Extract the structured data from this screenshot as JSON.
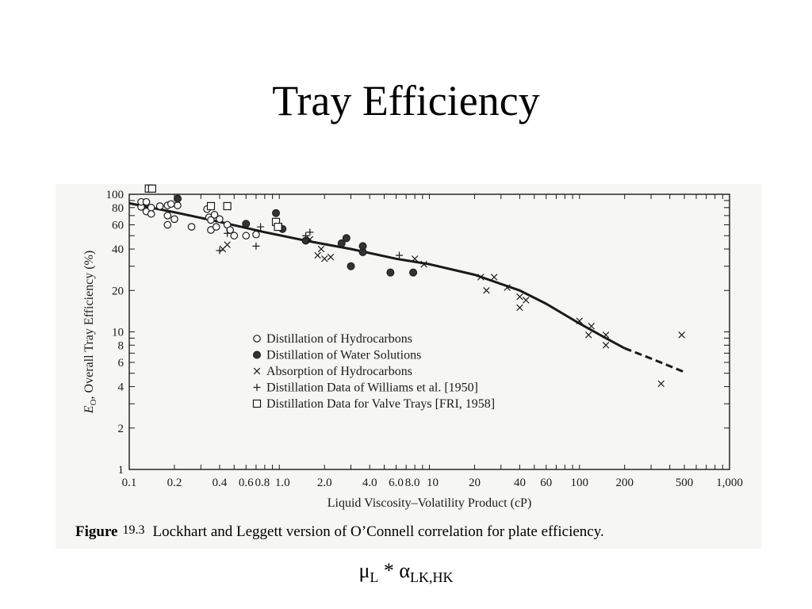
{
  "slide": {
    "title": "Tray Efficiency",
    "subtitle": {
      "mu": "μ",
      "mu_sub": "L",
      "op": " * ",
      "alpha": "α",
      "alpha_sub": "LK,HK"
    }
  },
  "caption": {
    "label": "Figure",
    "number": "19.3",
    "text": "Lockhart and Leggett version of O’Connell correlation for plate efficiency."
  },
  "colors": {
    "background": "#ffffff",
    "figure_background": "#f6f6f4",
    "ink": "#1a1a1a"
  },
  "chart_data": {
    "type": "scatter",
    "xscale": "log",
    "yscale": "log",
    "xlim": [
      0.1,
      1000
    ],
    "ylim": [
      1,
      100
    ],
    "xlabel": "Liquid Viscosity–Volatility Product (cP)",
    "ylabel": "E_O, Overall Tray Efficiency (%)",
    "ylabel_parts": {
      "symbol": "E",
      "sub": "O",
      "rest": ", Overall Tray Efficiency (%)"
    },
    "xticks": [
      0.1,
      0.2,
      0.4,
      0.6,
      0.8,
      1.0,
      2.0,
      4.0,
      6.0,
      8.0,
      10,
      20,
      40,
      60,
      100,
      200,
      500,
      1000
    ],
    "xtick_labels": [
      "0.1",
      "0.2",
      "0.4",
      "0.6",
      "0.8",
      "1.0",
      "2.0",
      "4.0",
      "6.0",
      "8.0",
      "10",
      "20",
      "40",
      "60",
      "100",
      "200",
      "500",
      "1,000"
    ],
    "yticks": [
      1,
      2,
      4,
      6,
      8,
      10,
      20,
      40,
      60,
      80,
      100
    ],
    "ytick_labels": [
      "1",
      "2",
      "4",
      "6",
      "8",
      "10",
      "20",
      "40",
      "60",
      "80",
      "100"
    ],
    "legend_position": "center",
    "series": [
      {
        "name": "Distillation of Hydrocarbons",
        "marker": "open-circle",
        "points": [
          [
            0.12,
            81
          ],
          [
            0.12,
            88
          ],
          [
            0.13,
            75
          ],
          [
            0.13,
            88
          ],
          [
            0.14,
            80
          ],
          [
            0.14,
            72
          ],
          [
            0.16,
            82
          ],
          [
            0.18,
            83
          ],
          [
            0.18,
            70
          ],
          [
            0.18,
            60
          ],
          [
            0.19,
            85
          ],
          [
            0.2,
            66
          ],
          [
            0.21,
            83
          ],
          [
            0.26,
            58
          ],
          [
            0.33,
            78
          ],
          [
            0.34,
            68
          ],
          [
            0.35,
            65
          ],
          [
            0.35,
            55
          ],
          [
            0.37,
            71
          ],
          [
            0.38,
            58
          ],
          [
            0.4,
            66
          ],
          [
            0.45,
            60
          ],
          [
            0.47,
            55
          ],
          [
            0.5,
            50
          ],
          [
            0.6,
            50
          ],
          [
            0.7,
            51
          ]
        ]
      },
      {
        "name": "Distillation of Water Solutions",
        "marker": "filled-circle",
        "points": [
          [
            0.21,
            93
          ],
          [
            0.6,
            61
          ],
          [
            0.95,
            73
          ],
          [
            1.05,
            56
          ],
          [
            1.5,
            46
          ],
          [
            2.6,
            44
          ],
          [
            2.8,
            48
          ],
          [
            3.0,
            30
          ],
          [
            3.6,
            38
          ],
          [
            3.6,
            42
          ],
          [
            5.5,
            27
          ],
          [
            7.8,
            27
          ]
        ]
      },
      {
        "name": "Absorption of Hydrocarbons",
        "marker": "x",
        "points": [
          [
            0.45,
            43
          ],
          [
            0.42,
            40
          ],
          [
            1.0,
            58
          ],
          [
            1.6,
            47
          ],
          [
            1.8,
            36
          ],
          [
            1.9,
            40
          ],
          [
            2.0,
            34
          ],
          [
            2.2,
            35
          ],
          [
            8.0,
            34
          ],
          [
            9.2,
            31
          ],
          [
            22,
            25
          ],
          [
            24,
            20
          ],
          [
            27,
            25
          ],
          [
            33,
            21
          ],
          [
            40,
            18
          ],
          [
            40,
            15
          ],
          [
            44,
            17
          ],
          [
            100,
            12
          ],
          [
            115,
            9.5
          ],
          [
            120,
            11
          ],
          [
            150,
            9.5
          ],
          [
            150,
            8
          ],
          [
            350,
            4.2
          ],
          [
            480,
            9.5
          ]
        ]
      },
      {
        "name": "Distillation Data of Williams et al. [1950]",
        "marker": "plus",
        "points": [
          [
            0.4,
            39
          ],
          [
            0.45,
            52
          ],
          [
            0.7,
            42
          ],
          [
            0.75,
            58
          ],
          [
            1.5,
            50
          ],
          [
            1.6,
            53
          ],
          [
            6.3,
            36
          ]
        ]
      },
      {
        "name": "Distillation Data for Valve Trays [FRI, 1958]",
        "marker": "open-square",
        "points": [
          [
            0.135,
            110
          ],
          [
            0.142,
            110
          ],
          [
            0.35,
            82
          ],
          [
            0.45,
            82
          ],
          [
            0.95,
            63
          ],
          [
            0.98,
            58
          ]
        ]
      }
    ],
    "correlation_curve": {
      "solid": [
        [
          0.1,
          86
        ],
        [
          0.2,
          74
        ],
        [
          0.4,
          63
        ],
        [
          0.8,
          53
        ],
        [
          1.5,
          46
        ],
        [
          3,
          40
        ],
        [
          6,
          34
        ],
        [
          10,
          31
        ],
        [
          20,
          26
        ],
        [
          40,
          20
        ],
        [
          60,
          16
        ],
        [
          100,
          11.5
        ],
        [
          150,
          9
        ],
        [
          200,
          7.6
        ]
      ],
      "dashed": [
        [
          200,
          7.6
        ],
        [
          300,
          6.4
        ],
        [
          500,
          5.1
        ]
      ]
    }
  }
}
